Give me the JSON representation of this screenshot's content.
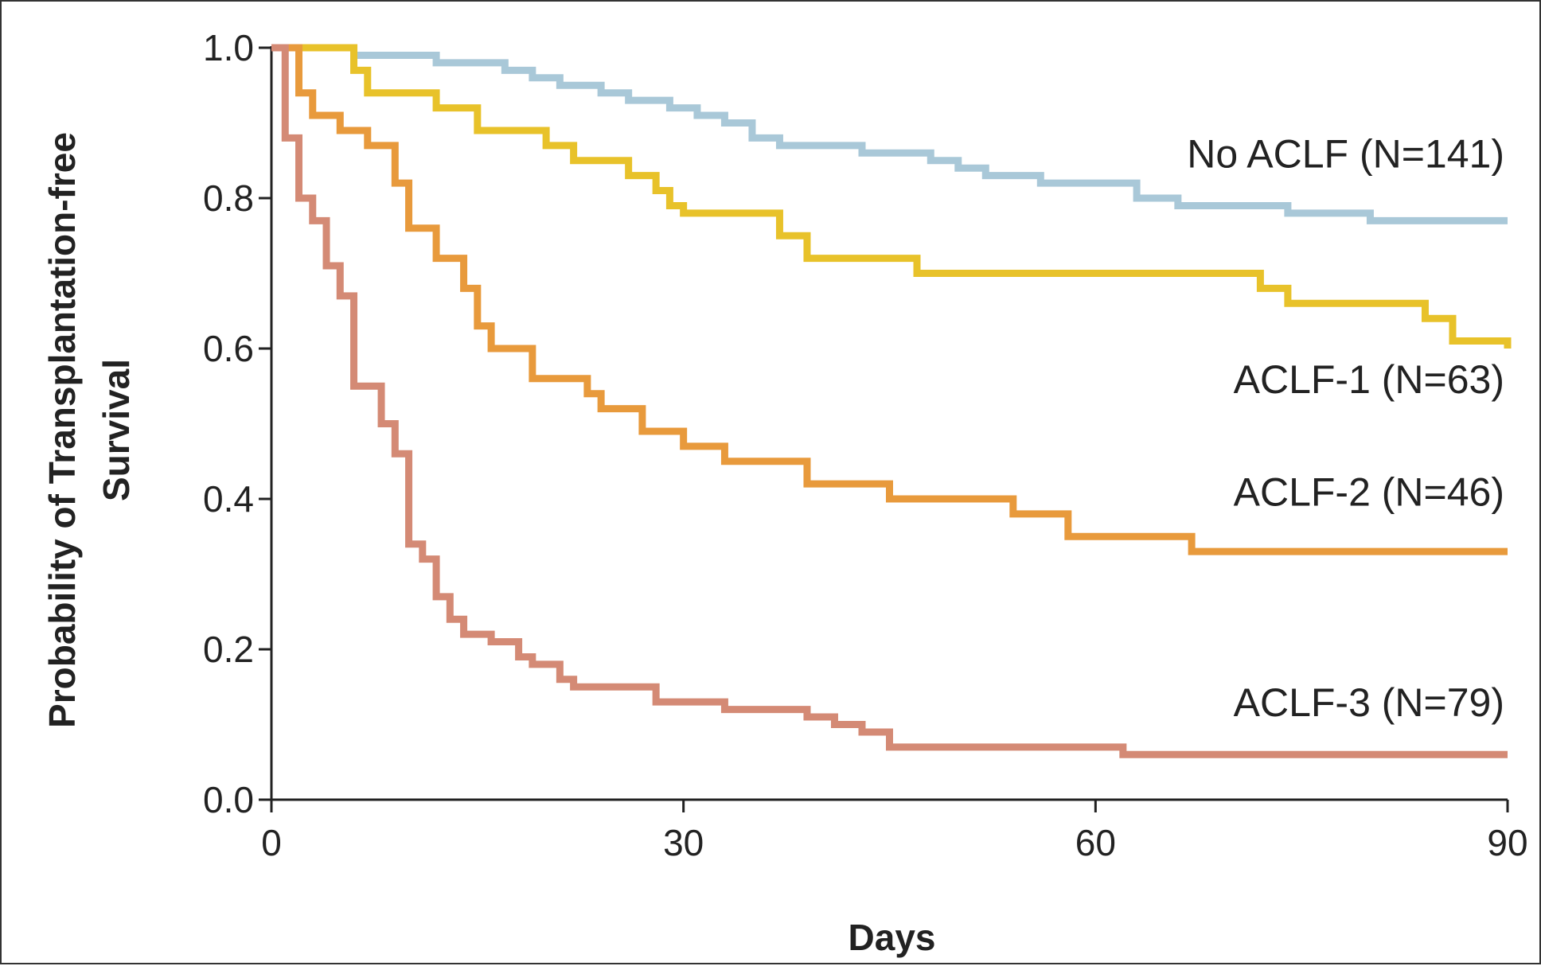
{
  "chart_data": {
    "type": "line",
    "title": "",
    "xlabel": "Days",
    "ylabel_lines": [
      "Probability of Transplantation-free",
      "Survival"
    ],
    "xlim": [
      0,
      90
    ],
    "ylim": [
      0,
      1
    ],
    "x_ticks": [
      0,
      30,
      60,
      90
    ],
    "x_tick_labels": [
      "0",
      "30",
      "60",
      "90"
    ],
    "y_ticks": [
      0,
      0.2,
      0.4,
      0.6,
      0.8,
      1.0
    ],
    "y_tick_labels": [
      "0.0",
      "0.2",
      "0.4",
      "0.6",
      "0.8",
      "1.0"
    ],
    "grid": false,
    "legend": "inline labels at right of each curve",
    "series": [
      {
        "name": "No ACLF (N=141)",
        "color": "#a9c8d8",
        "label_anchor": {
          "x": 90,
          "y": 0.86
        },
        "steps": [
          [
            0,
            1.0
          ],
          [
            6,
            0.99
          ],
          [
            12,
            0.98
          ],
          [
            17,
            0.97
          ],
          [
            19,
            0.96
          ],
          [
            21,
            0.95
          ],
          [
            24,
            0.94
          ],
          [
            26,
            0.93
          ],
          [
            29,
            0.92
          ],
          [
            31,
            0.91
          ],
          [
            33,
            0.9
          ],
          [
            35,
            0.88
          ],
          [
            37,
            0.87
          ],
          [
            43,
            0.86
          ],
          [
            48,
            0.85
          ],
          [
            50,
            0.84
          ],
          [
            52,
            0.83
          ],
          [
            56,
            0.82
          ],
          [
            63,
            0.8
          ],
          [
            66,
            0.79
          ],
          [
            74,
            0.78
          ],
          [
            80,
            0.77
          ],
          [
            90,
            0.77
          ]
        ]
      },
      {
        "name": "ACLF-1 (N=63)",
        "color": "#e8c22a",
        "label_anchor": {
          "x": 90,
          "y": 0.56
        },
        "steps": [
          [
            0,
            1.0
          ],
          [
            6,
            0.97
          ],
          [
            7,
            0.94
          ],
          [
            12,
            0.92
          ],
          [
            15,
            0.89
          ],
          [
            20,
            0.87
          ],
          [
            22,
            0.85
          ],
          [
            26,
            0.83
          ],
          [
            28,
            0.81
          ],
          [
            29,
            0.79
          ],
          [
            30,
            0.78
          ],
          [
            37,
            0.75
          ],
          [
            39,
            0.72
          ],
          [
            47,
            0.7
          ],
          [
            58,
            0.7
          ],
          [
            72,
            0.68
          ],
          [
            74,
            0.66
          ],
          [
            84,
            0.64
          ],
          [
            86,
            0.61
          ],
          [
            90,
            0.6
          ]
        ]
      },
      {
        "name": "ACLF-2 (N=46)",
        "color": "#e89a3c",
        "label_anchor": {
          "x": 90,
          "y": 0.41
        },
        "steps": [
          [
            0,
            1.0
          ],
          [
            2,
            0.94
          ],
          [
            3,
            0.91
          ],
          [
            5,
            0.89
          ],
          [
            7,
            0.87
          ],
          [
            9,
            0.82
          ],
          [
            10,
            0.76
          ],
          [
            12,
            0.72
          ],
          [
            14,
            0.68
          ],
          [
            15,
            0.63
          ],
          [
            16,
            0.6
          ],
          [
            19,
            0.56
          ],
          [
            23,
            0.54
          ],
          [
            24,
            0.52
          ],
          [
            27,
            0.49
          ],
          [
            30,
            0.47
          ],
          [
            33,
            0.45
          ],
          [
            39,
            0.42
          ],
          [
            45,
            0.4
          ],
          [
            54,
            0.38
          ],
          [
            58,
            0.35
          ],
          [
            67,
            0.33
          ],
          [
            90,
            0.33
          ]
        ]
      },
      {
        "name": "ACLF-3 (N=79)",
        "color": "#d48a75",
        "label_anchor": {
          "x": 90,
          "y": 0.13
        },
        "steps": [
          [
            0,
            1.0
          ],
          [
            1,
            0.88
          ],
          [
            2,
            0.8
          ],
          [
            3,
            0.77
          ],
          [
            4,
            0.71
          ],
          [
            5,
            0.67
          ],
          [
            6,
            0.55
          ],
          [
            8,
            0.5
          ],
          [
            9,
            0.46
          ],
          [
            10,
            0.34
          ],
          [
            11,
            0.32
          ],
          [
            12,
            0.27
          ],
          [
            13,
            0.24
          ],
          [
            14,
            0.22
          ],
          [
            16,
            0.21
          ],
          [
            18,
            0.19
          ],
          [
            19,
            0.18
          ],
          [
            21,
            0.16
          ],
          [
            22,
            0.15
          ],
          [
            28,
            0.13
          ],
          [
            33,
            0.12
          ],
          [
            39,
            0.11
          ],
          [
            41,
            0.1
          ],
          [
            43,
            0.09
          ],
          [
            45,
            0.07
          ],
          [
            53,
            0.07
          ],
          [
            62,
            0.06
          ],
          [
            90,
            0.06
          ]
        ]
      }
    ]
  }
}
